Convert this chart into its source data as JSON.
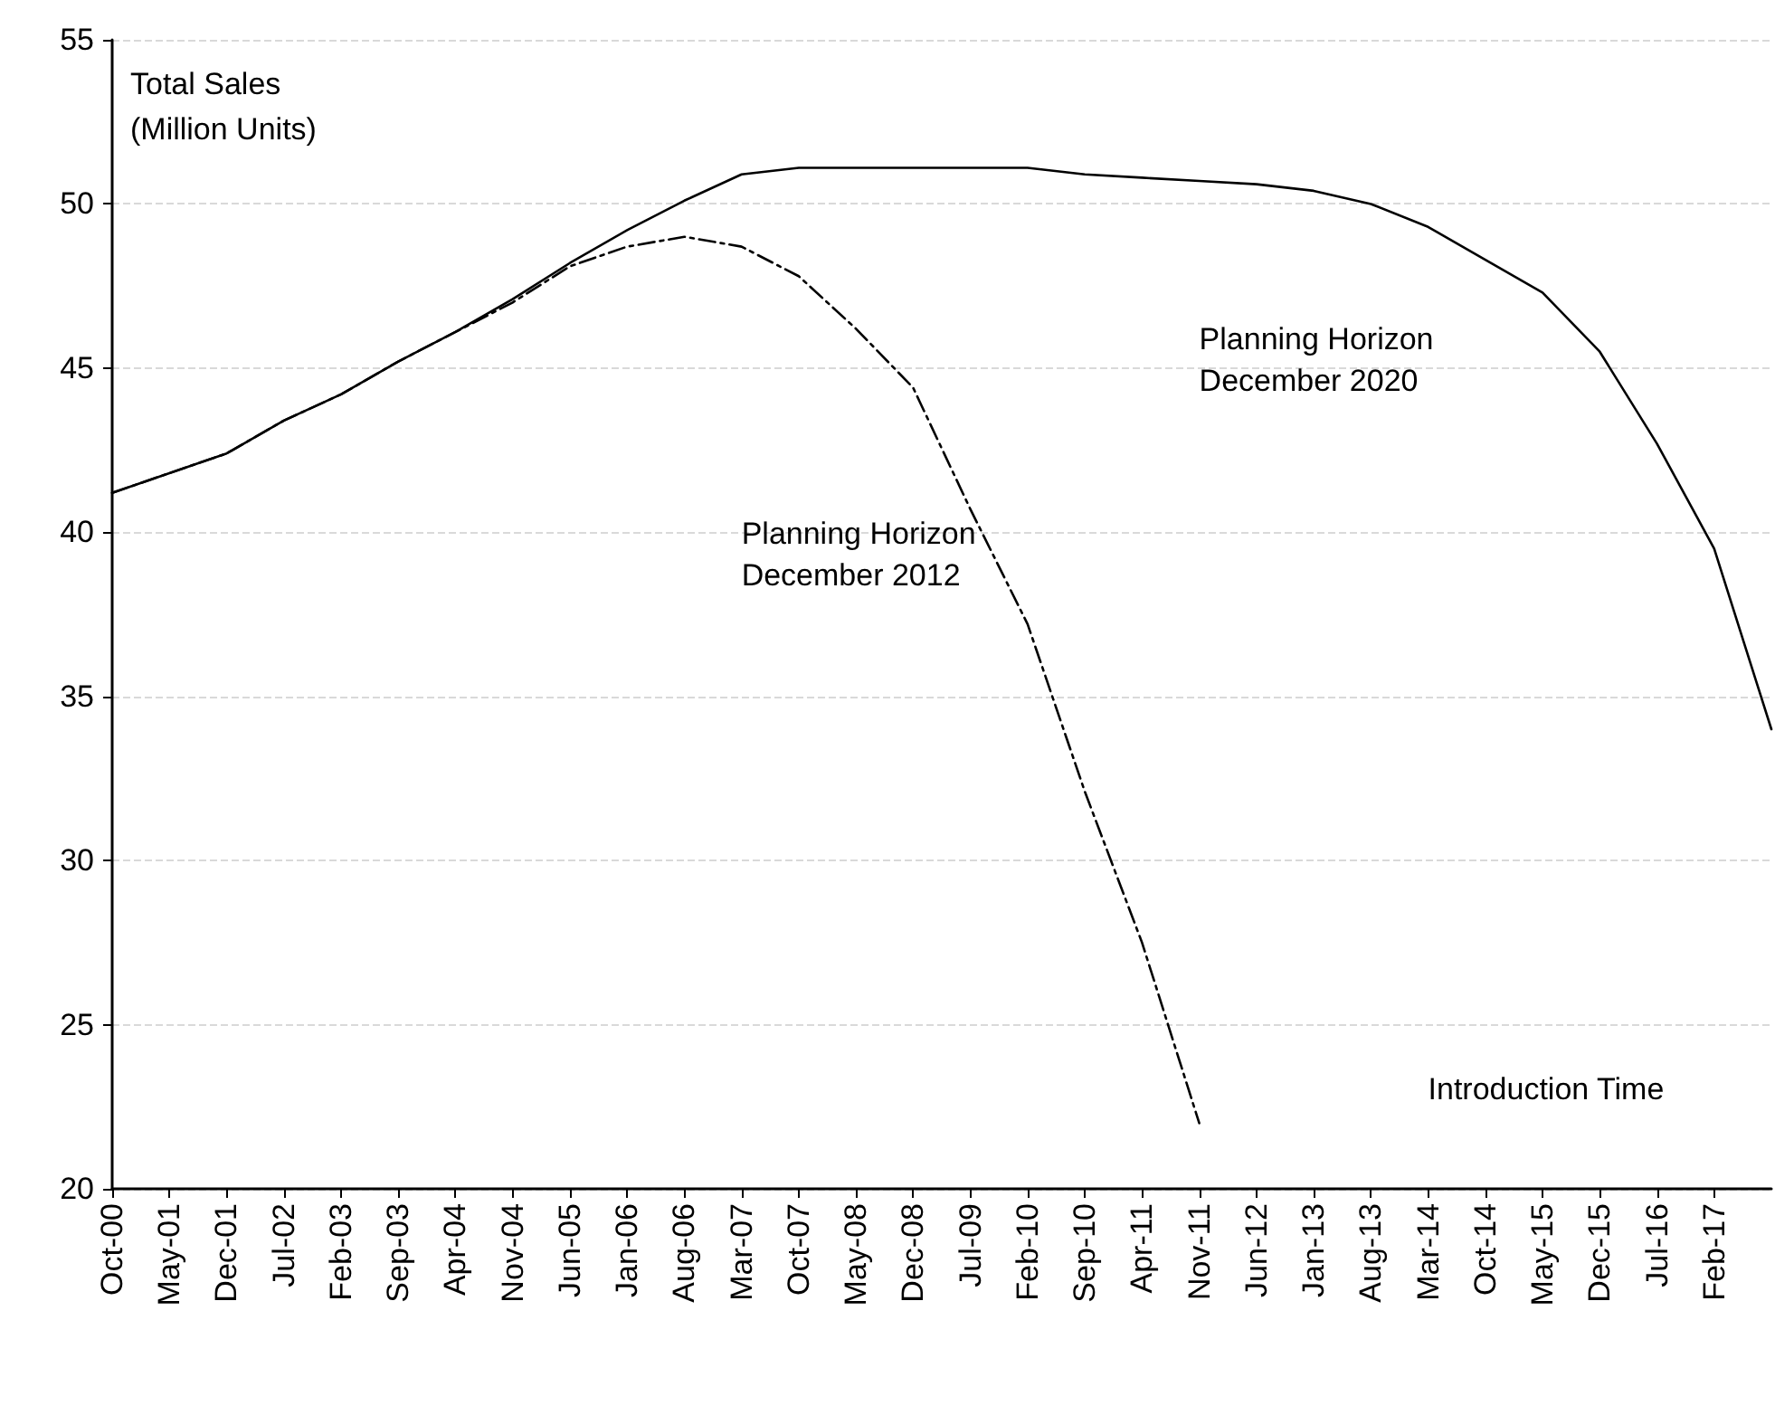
{
  "chart_data": {
    "type": "line",
    "ylabel": "Total Sales\n(Million Units)",
    "categories": [
      "Oct-00",
      "May-01",
      "Dec-01",
      "Jul-02",
      "Feb-03",
      "Sep-03",
      "Apr-04",
      "Nov-04",
      "Jun-05",
      "Jan-06",
      "Aug-06",
      "Mar-07",
      "Oct-07",
      "May-08",
      "Dec-08",
      "Jul-09",
      "Feb-10",
      "Sep-10",
      "Apr-11",
      "Nov-11",
      "Jun-12",
      "Jan-13",
      "Aug-13",
      "Mar-14",
      "Oct-14",
      "May-15",
      "Dec-15",
      "Jul-16",
      "Feb-17",
      null
    ],
    "series": [
      {
        "name": "Planning Horizon\nDecember 2020",
        "color": "#000000",
        "line_style": "solid",
        "values": [
          41.2,
          41.8,
          42.4,
          43.4,
          44.2,
          45.2,
          46.1,
          47.1,
          48.2,
          49.2,
          50.1,
          50.9,
          51.1,
          51.1,
          51.1,
          51.1,
          51.1,
          50.9,
          50.8,
          50.7,
          50.6,
          50.4,
          50.0,
          49.3,
          48.3,
          47.3,
          45.5,
          42.7,
          39.5,
          34.0
        ]
      },
      {
        "name": "Planning Horizon\nDecember 2012",
        "color": "#000000",
        "line_style": "dashed",
        "values": [
          41.2,
          41.8,
          42.4,
          43.4,
          44.2,
          45.2,
          46.1,
          47.0,
          48.1,
          48.7,
          49.0,
          48.7,
          47.8,
          46.2,
          44.4,
          40.7,
          37.2,
          32.1,
          27.5,
          22.0,
          null,
          null,
          null,
          null,
          null,
          null,
          null,
          null,
          null,
          null
        ]
      }
    ],
    "ylim": [
      20,
      55
    ],
    "yticks": [
      20,
      25,
      30,
      35,
      40,
      45,
      50,
      55
    ],
    "grid": "y",
    "marker": "none",
    "annotations": [
      "Introduction Time"
    ]
  }
}
